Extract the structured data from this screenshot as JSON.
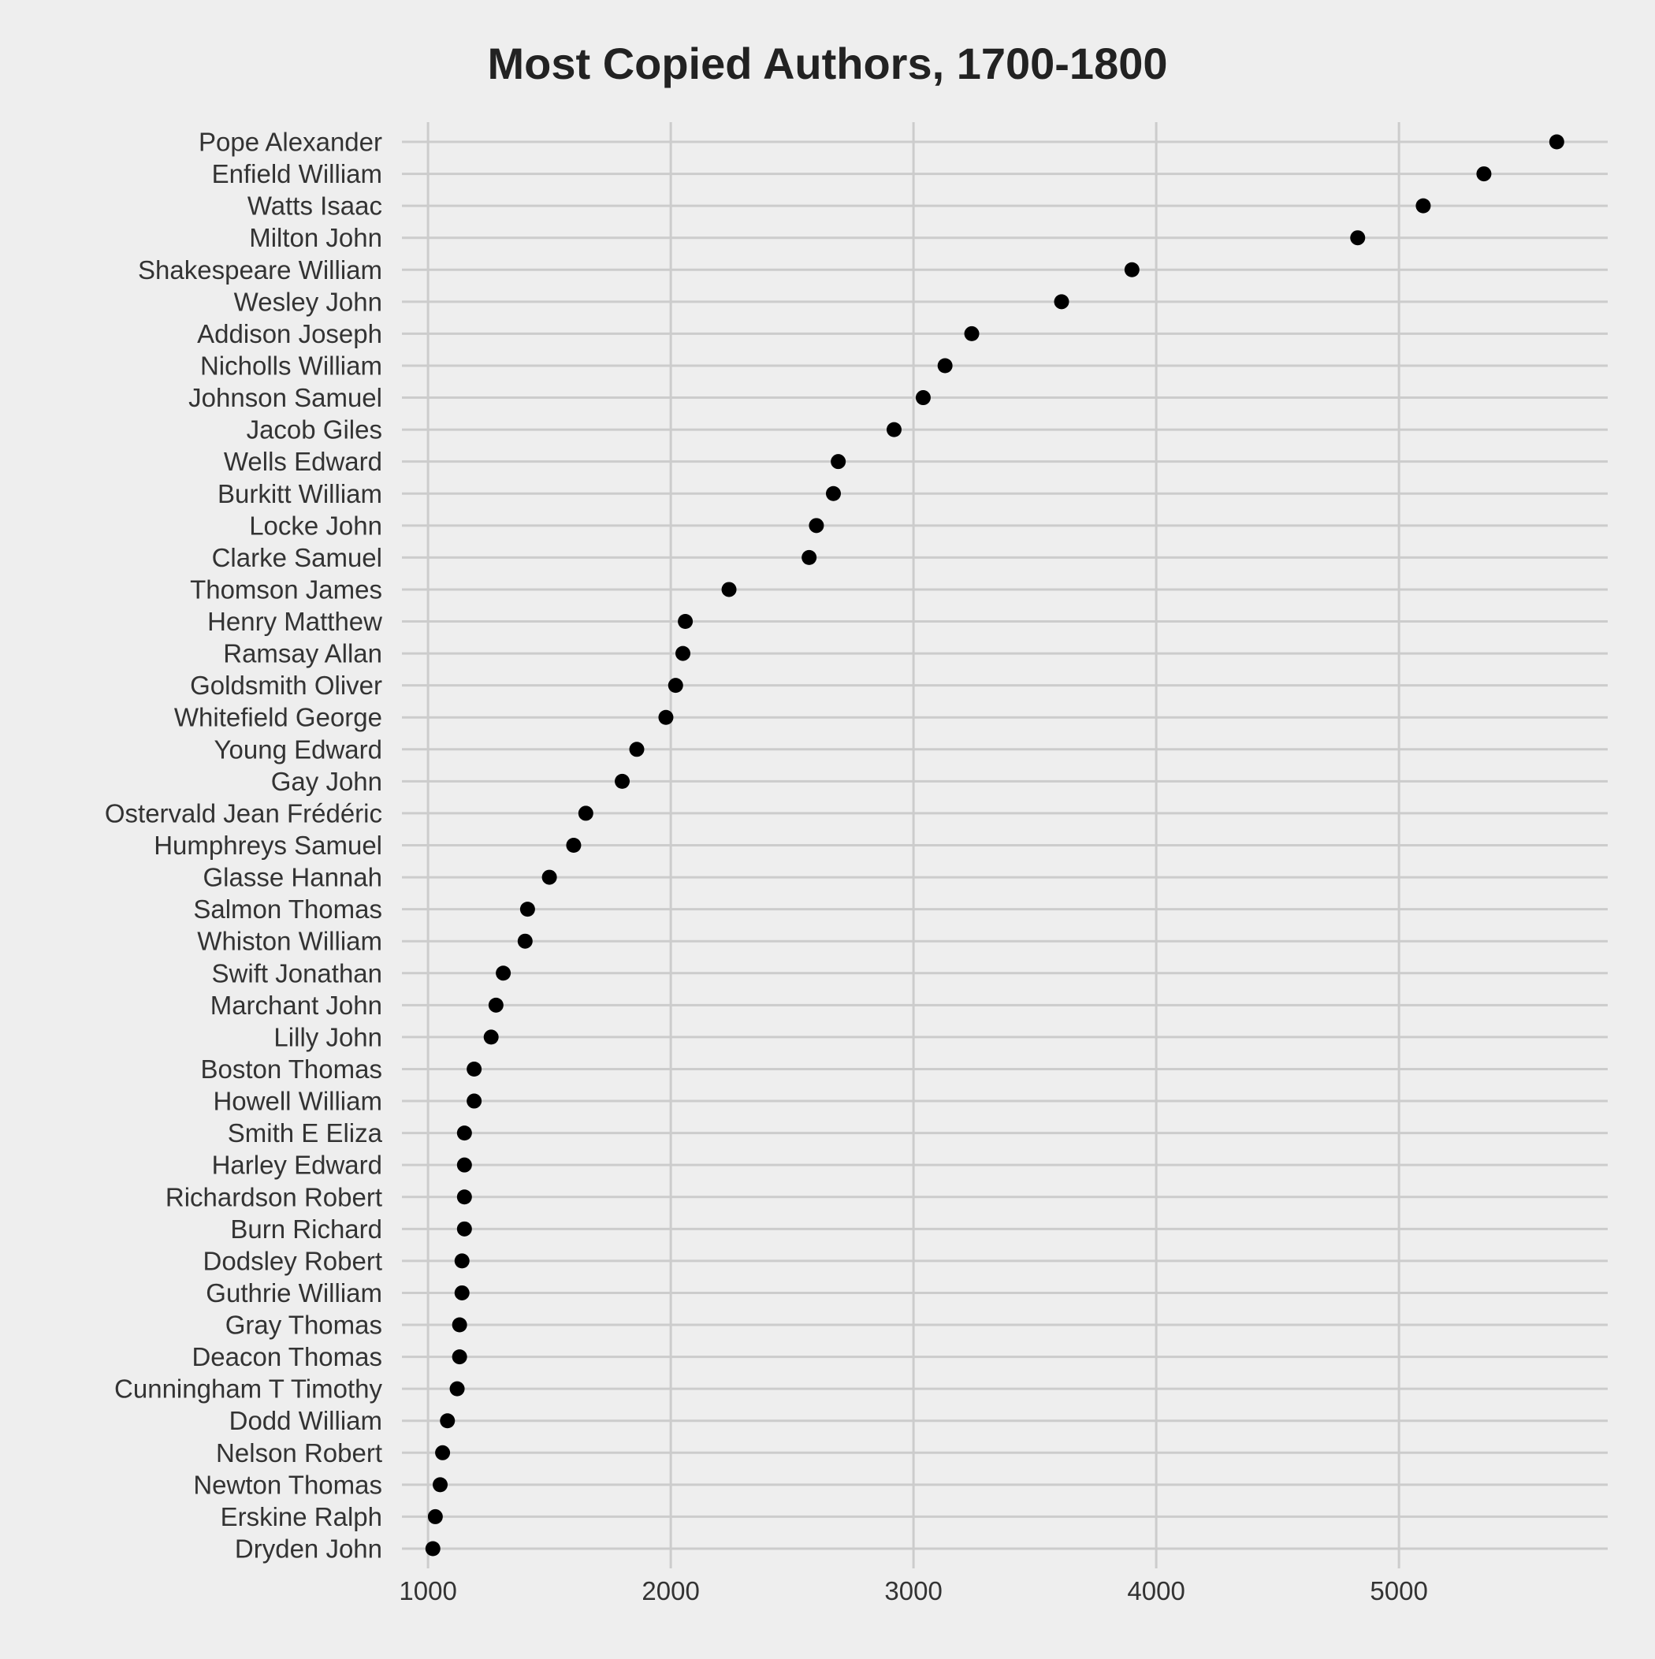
{
  "chart_data": {
    "type": "scatter",
    "title": "Most Copied Authors, 1700-1800",
    "xlabel": "",
    "ylabel": "",
    "xlim": [
      860,
      5860
    ],
    "x_ticks": [
      1000,
      2000,
      3000,
      4000,
      5000
    ],
    "grid": true,
    "legend": "none",
    "colors": {
      "background": "#eeeeee",
      "grid": "#cccccc",
      "point": "#000000",
      "title": "#222222",
      "text": "#333333"
    },
    "categories": [
      "Pope Alexander",
      "Enfield William",
      "Watts Isaac",
      "Milton John",
      "Shakespeare William",
      "Wesley John",
      "Addison Joseph",
      "Nicholls William",
      "Johnson Samuel",
      "Jacob Giles",
      "Wells Edward",
      "Burkitt William",
      "Locke John",
      "Clarke Samuel",
      "Thomson James",
      "Henry Matthew",
      "Ramsay Allan",
      "Goldsmith Oliver",
      "Whitefield George",
      "Young Edward",
      "Gay John",
      "Ostervald Jean Frédéric",
      "Humphreys Samuel",
      "Glasse Hannah",
      "Salmon Thomas",
      "Whiston William",
      "Swift Jonathan",
      "Marchant John",
      "Lilly John",
      "Boston Thomas",
      "Howell William",
      "Smith E Eliza",
      "Harley Edward",
      "Richardson Robert",
      "Burn Richard",
      "Dodsley Robert",
      "Guthrie William",
      "Gray Thomas",
      "Deacon Thomas",
      "Cunningham T Timothy",
      "Dodd William",
      "Nelson Robert",
      "Newton Thomas",
      "Erskine Ralph",
      "Dryden John"
    ],
    "values": [
      5650,
      5350,
      5100,
      4830,
      3900,
      3610,
      3240,
      3130,
      3040,
      2920,
      2690,
      2670,
      2600,
      2570,
      2240,
      2060,
      2050,
      2020,
      1980,
      1860,
      1800,
      1650,
      1600,
      1500,
      1410,
      1400,
      1310,
      1280,
      1260,
      1190,
      1190,
      1150,
      1150,
      1150,
      1150,
      1140,
      1140,
      1130,
      1130,
      1120,
      1080,
      1060,
      1050,
      1030,
      1020
    ]
  }
}
